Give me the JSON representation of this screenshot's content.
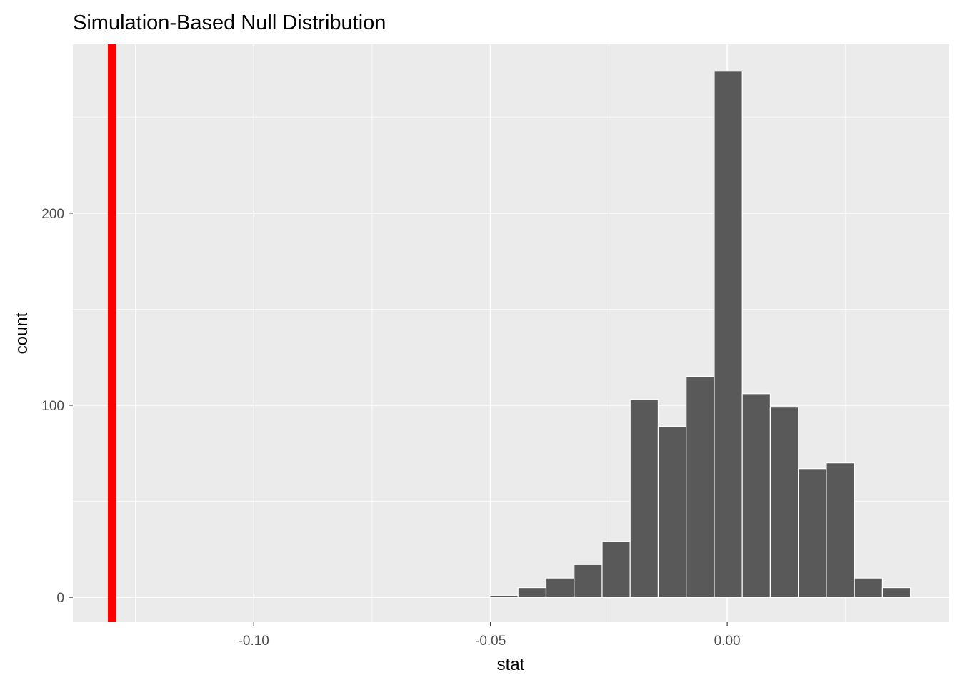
{
  "chart_data": {
    "type": "bar",
    "subtype": "histogram",
    "title": "Simulation-Based Null Distribution",
    "xlabel": "stat",
    "ylabel": "count",
    "xlim": [
      -0.1382,
      0.0469
    ],
    "ylim": [
      -13,
      288
    ],
    "x_ticks": [
      -0.1,
      -0.05,
      0.0
    ],
    "x_tick_labels": [
      "-0.10",
      "-0.05",
      "0.00"
    ],
    "y_ticks": [
      0,
      100,
      200
    ],
    "y_tick_labels": [
      "0",
      "100",
      "200"
    ],
    "grid": true,
    "bin_start": -0.0501,
    "bin_width": 0.00592,
    "values": [
      1,
      5,
      10,
      17,
      29,
      103,
      89,
      115,
      274,
      106,
      99,
      67,
      70,
      10,
      5
    ],
    "bar_color": "#595959",
    "bar_outline": "#ffffff",
    "observed_stat": -0.1299,
    "observed_line_color": "#ff0000",
    "panel_background": "#ebebeb"
  }
}
